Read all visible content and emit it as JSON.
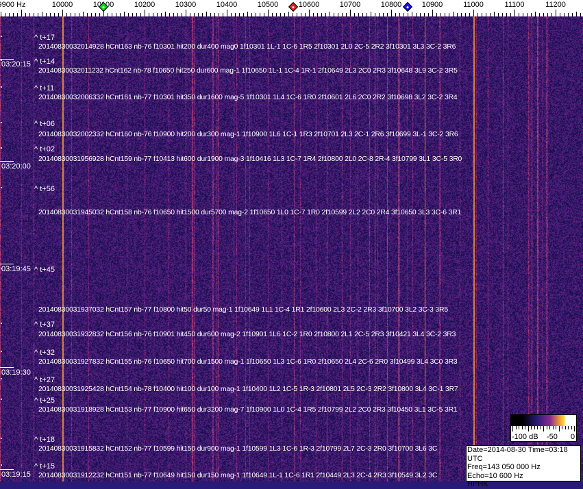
{
  "chart_data": {
    "type": "heatmap",
    "x_unit": "Hz",
    "x_ticks": [
      "9900 Hz",
      "10000",
      "10100",
      "10200",
      "10300",
      "10400",
      "10500",
      "10600",
      "10700",
      "10800",
      "10900",
      "11000",
      "11100",
      "11200"
    ],
    "x_tick_values": [
      9900,
      10000,
      10100,
      10200,
      10300,
      10400,
      10500,
      10600,
      10700,
      10800,
      10900,
      11000,
      11100,
      11200
    ],
    "xlim": [
      9850,
      11270
    ],
    "y_ticks": [
      "03:20:15",
      "03:20:00",
      "03:19:45",
      "03:19:30",
      "03:19:15"
    ],
    "markers": [
      {
        "color": "#22cc22",
        "freq": 10100
      },
      {
        "color": "#dd2222",
        "freq": 10562
      },
      {
        "color": "#1a1acc",
        "freq": 10840
      }
    ],
    "strong_carriers_hz": [
      10000,
      11000
    ],
    "colorscale": {
      "labels": [
        "-100 dB",
        "-50",
        "0"
      ],
      "range": [
        -100,
        0
      ],
      "colors": [
        "#000000",
        "#2a1a78",
        "#8a2a90",
        "#f0a030",
        "#ffe040",
        "#ffffff"
      ]
    },
    "events": [
      {
        "t": "^ t+17",
        "line": "20140830032014928 hCnt163 nb-76 f10301 hit200 dur400 mag0 1f10301 1L-1 1C-6 1R5 2f10301 2L0 2C-5 2R2 3f10301 3L3 3C-2 3R6"
      },
      {
        "t": "^ t+14",
        "line": "20140830032011232 hCnt162 nb-78 f10650 hit250 dur600 mag-1 1f10650 1L-1 1C-4 1R-1 2f10649 2L3 2C0 2R3 3f10648 3L9 3C-2 3R5"
      },
      {
        "t": "^ t+11",
        "line": "20140830032006332 hCnt161 nb-77 f10301 hit350 dur1600 mag-5 1f10301 1L4 1C-6 1R0 2f10601 2L6 2C0 2R2 3f10698 3L2 3C-2 3R4"
      },
      {
        "t": "^ t+06",
        "line": "20140830032002332 hCnt160 nb-76 f10900 hit200 dur300 mag-1 1f10900 1L6 1C-1 1R3 2f10701 2L3 2C-1 2R6 3f10699 3L-1 3C-2 3R6"
      },
      {
        "t": "^ t+02",
        "line": "20140830031956928 hCnt159 nb-77 f10413 hit600 dur1900 mag-3 1f10416 1L3 1C-7 1R4 2f10800 2L0 2C-8 2R-4 3f10799 3L1 3C-5 3R0"
      },
      {
        "t": "^ t+56",
        "line": "20140830031945032 hCnt158 nb-76 f10650 hit1500 dur5700 mag-2 1f10650 1L0 1C-7 1R0 2f10599 2L2 2C0 2R4 3f10650 3L3 3C-6 3R1"
      },
      {
        "t": "^ t+45",
        "line": "20140830031937032 hCnt157 nb-77 f10800 hit50 dur50 mag-1 1f10649 1L1 1C-4 1R1 2f10600 2L3 2C-2 2R3 3f10700 3L2 3C-3 3R5"
      },
      {
        "t": "^ t+37",
        "line": "20140830031932832 hCnt156 nb-76 f10901 hit450 dur600 mag-2 1f10901 1L6 1C-2 1R0 2f10800 2L1 2C-5 2R3 3f10421 3L4 3C-2 3R3"
      },
      {
        "t": "^ t+32",
        "line": "20140830031927832 hCnt155 nb-76 f10650 hit700 dur1500 mag-1 1f10650 1L3 1C-6 1R0 2f10650 2L4 2C-6 2R0 3f10499 3L4 3C0 3R3"
      },
      {
        "t": "^ t+27",
        "line": "20140830031925428 hCnt154 nb-78 f10400 hit100 dur100 mag-1 1f10400 1L2 1C-5 1R-3 2f10801 2L5 2C-3 2R2 3f10800 3L4 3C-1 3R7"
      },
      {
        "t": "^ t+25",
        "line": "20140830031918928 hCnt153 nb-77 f10900 hit650 dur3200 mag-7 1f10900 1L0 1C-4 1R5 2f10799 2L2 2C0 2R3 3f10450 3L1 3C-5 3R1"
      },
      {
        "t": "^ t+18",
        "line": "20140830031915832 hCnt152 nb-77 f10599 hit150 dur900 mag-1 1f10599 1L3 1C-6 1R-3 2f10799 2L7 2C-3 2R0 3f10700 3L6 3C"
      },
      {
        "t": "^ t+15",
        "line": "20140830031912232 hCnt151 nb-77 f10649 hit150 dur150 mag-1 1f10649 1L-1 1C-6 1R1 2f10449 2L3 2C-4 2R3 3f10549 3L2 3C"
      }
    ]
  },
  "info": {
    "date_line": "Date=2014-08-30 Time=03:18 UTC",
    "freq_line": "Freq=143 050 000 Hz",
    "echo_line": "Echo=10 600 Hz",
    "station": "HPHK"
  }
}
